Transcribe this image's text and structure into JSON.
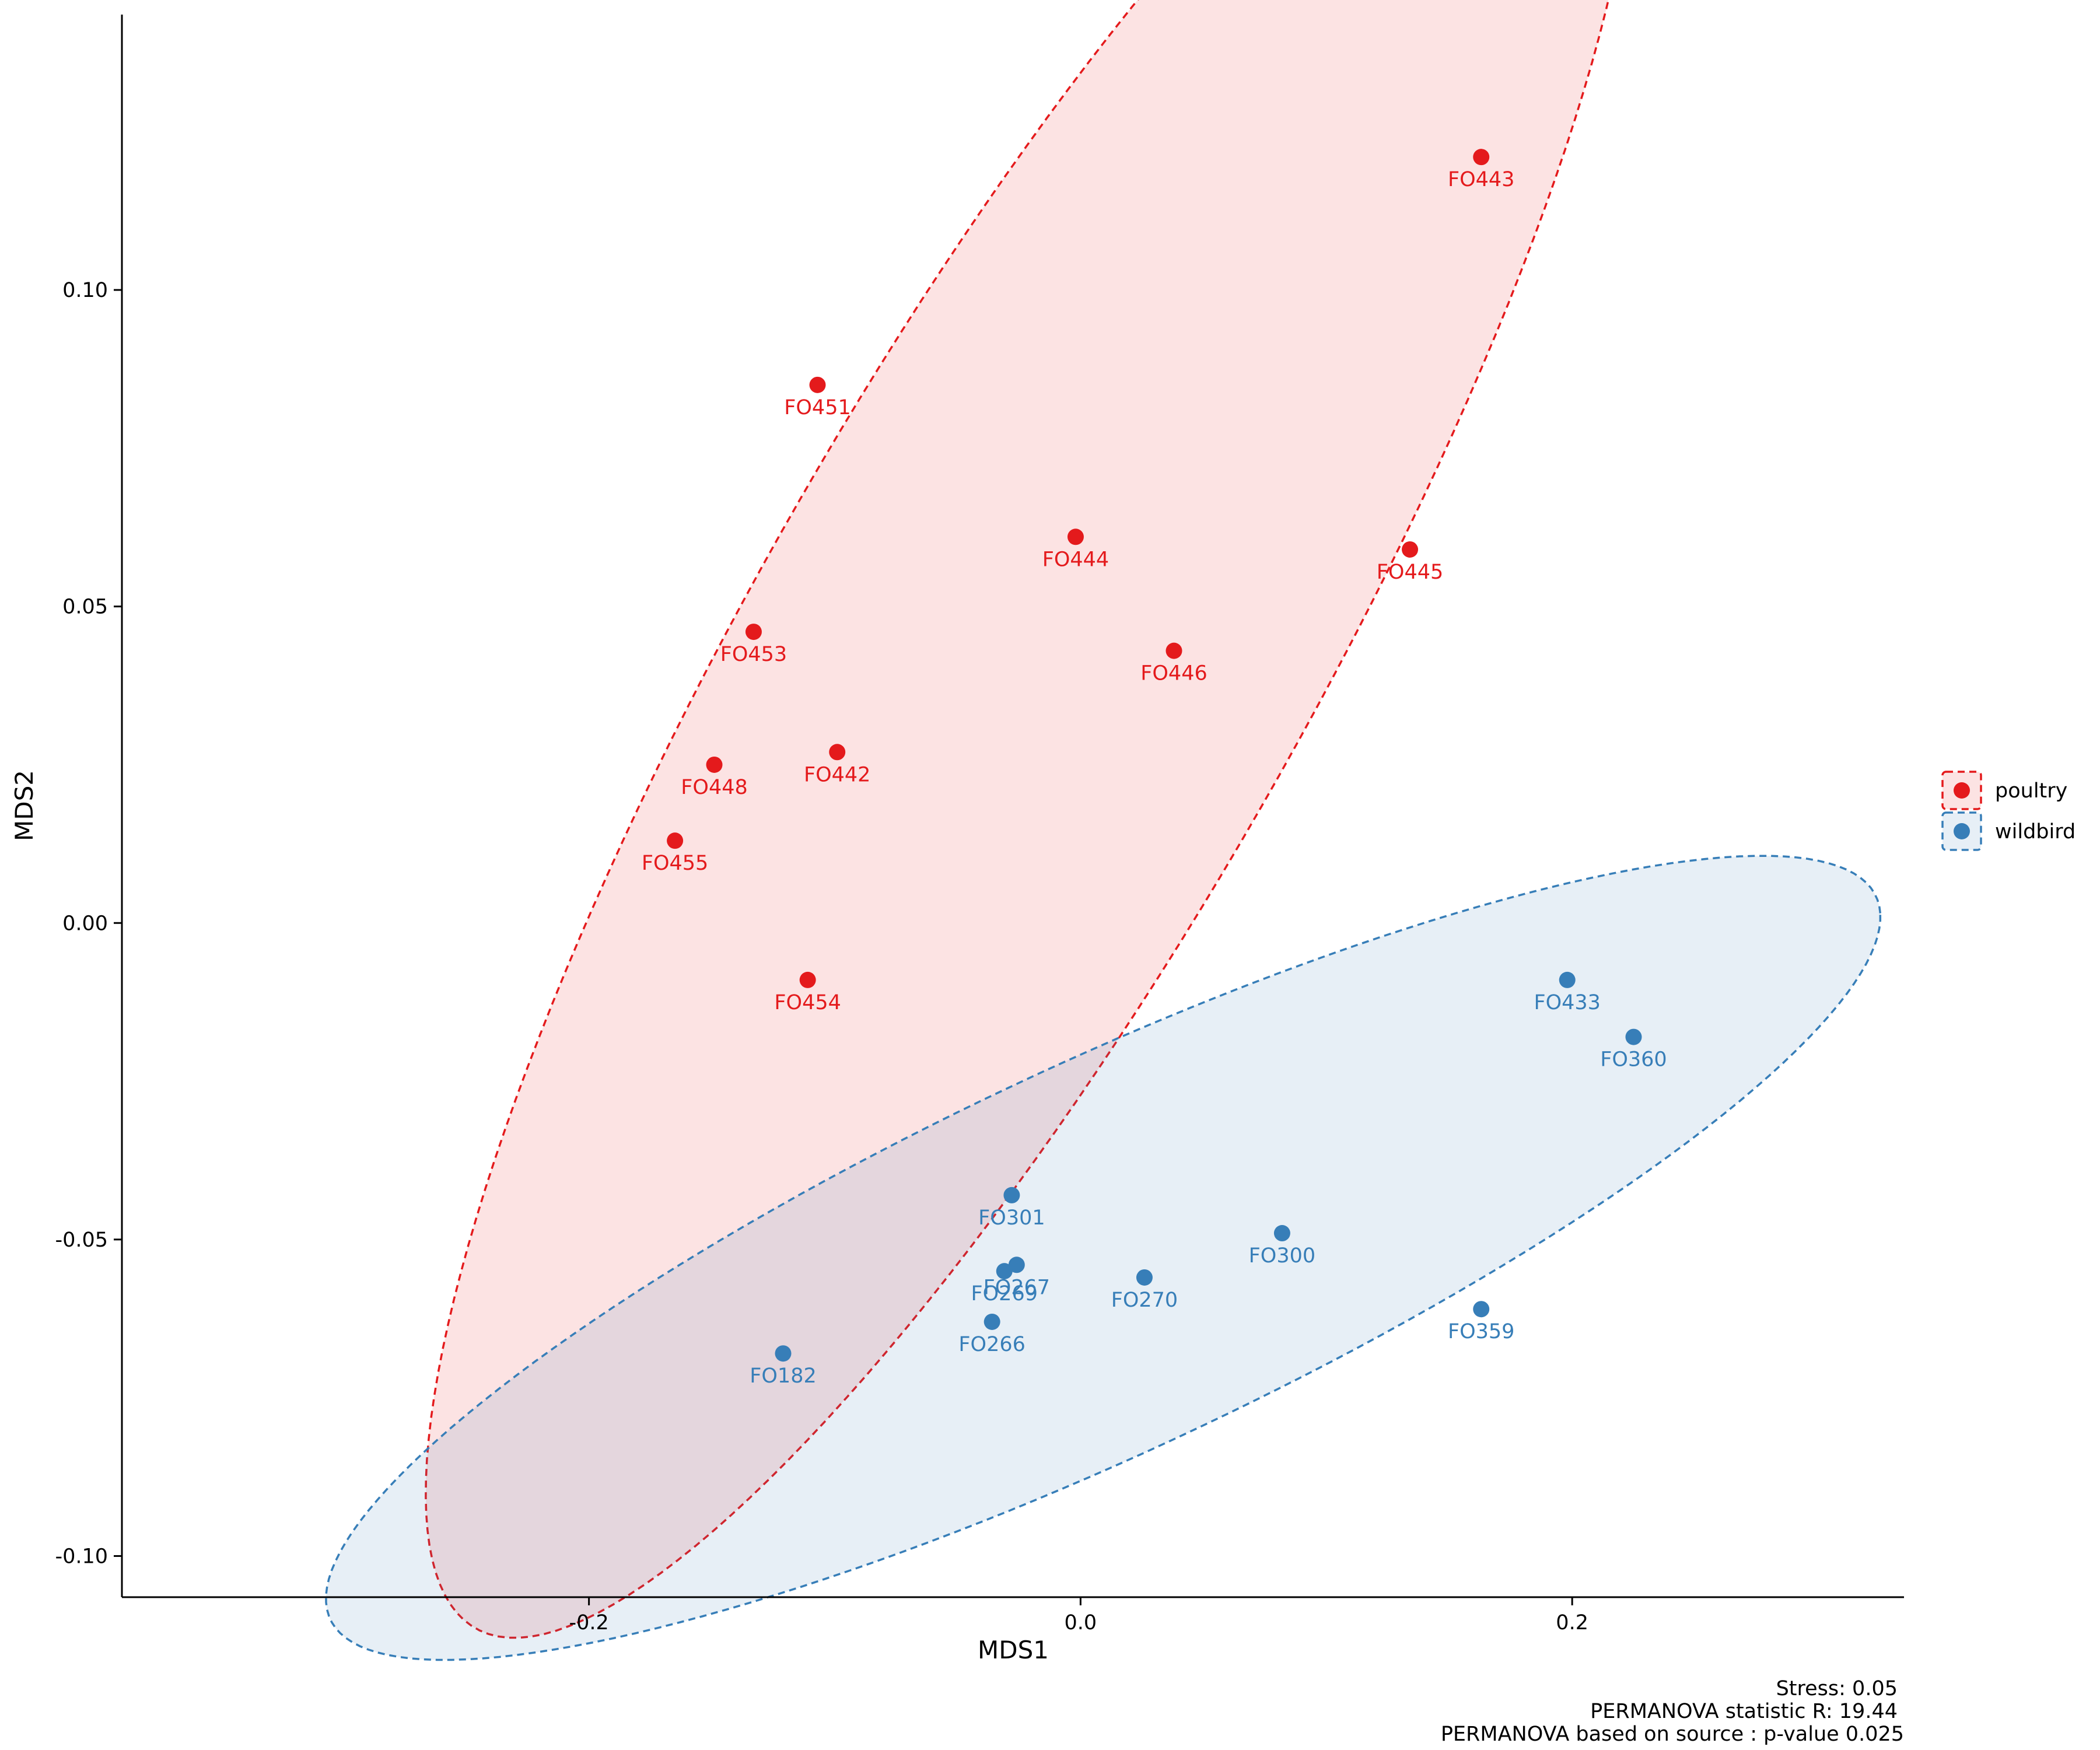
{
  "chart_data": {
    "type": "scatter",
    "xlabel": "MDS1",
    "ylabel": "MDS2",
    "xlim": [
      -0.39,
      0.335
    ],
    "ylim": [
      -0.1065,
      0.1435
    ],
    "xticks": [
      {
        "value": -0.2,
        "label": "-0.2"
      },
      {
        "value": 0.0,
        "label": "0.0"
      },
      {
        "value": 0.2,
        "label": "0.2"
      }
    ],
    "yticks": [
      {
        "value": -0.1,
        "label": "-0.10"
      },
      {
        "value": -0.05,
        "label": "-0.05"
      },
      {
        "value": 0.0,
        "label": "0.00"
      },
      {
        "value": 0.05,
        "label": "0.05"
      },
      {
        "value": 0.1,
        "label": "0.10"
      }
    ],
    "grid": false,
    "legend_position": "right",
    "series": [
      {
        "name": "poultry",
        "color": "#e41a1c",
        "ellipse": {
          "center": [
            -0.0205,
            0.0425
          ],
          "semi_axes": [
            0.2822,
            0.0706
          ],
          "angle_deg": 30.45
        },
        "points": [
          {
            "label": "FO443",
            "x": 0.163,
            "y": 0.121
          },
          {
            "label": "FO451",
            "x": -0.107,
            "y": 0.085
          },
          {
            "label": "FO444",
            "x": -0.002,
            "y": 0.061
          },
          {
            "label": "FO445",
            "x": 0.134,
            "y": 0.059
          },
          {
            "label": "FO453",
            "x": -0.133,
            "y": 0.046
          },
          {
            "label": "FO446",
            "x": 0.038,
            "y": 0.043
          },
          {
            "label": "FO448",
            "x": -0.149,
            "y": 0.025
          },
          {
            "label": "FO442",
            "x": -0.099,
            "y": 0.027
          },
          {
            "label": "FO455",
            "x": -0.165,
            "y": 0.013
          },
          {
            "label": "FO454",
            "x": -0.111,
            "y": -0.009
          }
        ]
      },
      {
        "name": "wildbird",
        "color": "#377eb8",
        "ellipse": {
          "center": [
            0.0092,
            -0.0529
          ],
          "semi_axes": [
            0.3208,
            0.0332
          ],
          "angle_deg": 9.77
        },
        "points": [
          {
            "label": "FO433",
            "x": 0.198,
            "y": -0.009
          },
          {
            "label": "FO360",
            "x": 0.225,
            "y": -0.018
          },
          {
            "label": "FO301",
            "x": -0.028,
            "y": -0.043
          },
          {
            "label": "FO300",
            "x": 0.082,
            "y": -0.049
          },
          {
            "label": "FO267",
            "x": -0.026,
            "y": -0.054
          },
          {
            "label": "FO269",
            "x": -0.031,
            "y": -0.055
          },
          {
            "label": "FO270",
            "x": 0.026,
            "y": -0.056
          },
          {
            "label": "FO359",
            "x": 0.163,
            "y": -0.061
          },
          {
            "label": "FO266",
            "x": -0.036,
            "y": -0.063
          },
          {
            "label": "FO182",
            "x": -0.121,
            "y": -0.068
          }
        ]
      }
    ],
    "annotations": [
      "Stress: 0.05",
      "PERMANOVA statistic R: 19.44",
      "PERMANOVA based on  source : p-value 0.025"
    ]
  }
}
